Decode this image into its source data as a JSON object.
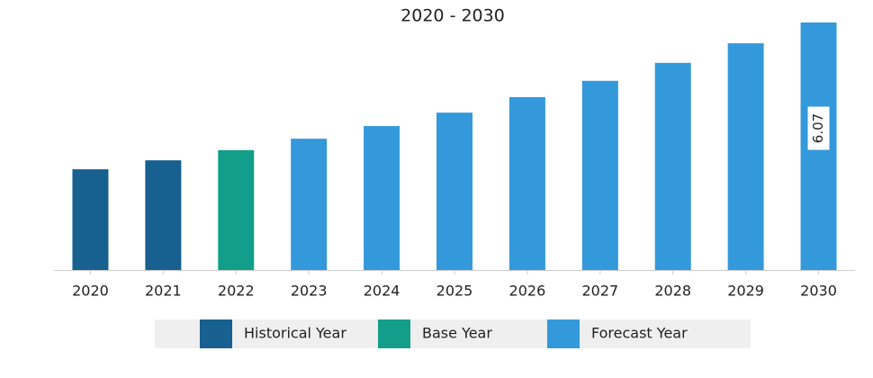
{
  "chart_data": {
    "type": "bar",
    "title": "2020 - 2030",
    "categories": [
      "2020",
      "2021",
      "2022",
      "2023",
      "2024",
      "2025",
      "2026",
      "2027",
      "2028",
      "2029",
      "2030"
    ],
    "series": [
      {
        "name": "Historical Year",
        "color": "#17608f",
        "values": [
          2.47,
          2.69,
          null,
          null,
          null,
          null,
          null,
          null,
          null,
          null,
          null
        ]
      },
      {
        "name": "Base Year",
        "color": "#129e89",
        "values": [
          null,
          null,
          2.94,
          null,
          null,
          null,
          null,
          null,
          null,
          null,
          null
        ]
      },
      {
        "name": "Forecast Year",
        "color": "#3399db",
        "values": [
          null,
          null,
          null,
          3.22,
          3.53,
          3.86,
          4.24,
          4.64,
          5.08,
          5.56,
          6.07
        ],
        "value_labels": [
          null,
          null,
          null,
          null,
          null,
          null,
          null,
          null,
          null,
          null,
          "6.07"
        ]
      }
    ]
  }
}
